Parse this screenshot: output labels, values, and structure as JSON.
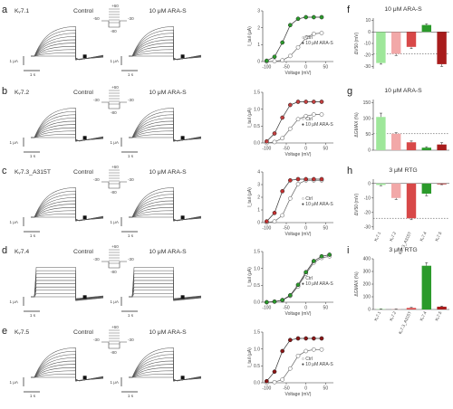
{
  "rows": [
    {
      "panel": "a",
      "channel": "Kᵥ7.1",
      "control_label": "Control",
      "drug_label": "10 μM ARA-S",
      "protocol": {
        "top": "+60",
        "mid": "-50",
        "low": "-80",
        "hold": "-30",
        "hold2": "-100"
      },
      "scale": {
        "y": "1 μA",
        "x": "1 s"
      },
      "curve": {
        "ylabel": "I_tail (μA)",
        "xlabel": "Voltage (mV)",
        "xticks": [
          "-100",
          "-50",
          "0",
          "50"
        ],
        "yticks": [
          "0",
          "1",
          "2",
          "3"
        ],
        "legend": [
          "Ctrl",
          "10 μM ARA-S"
        ]
      }
    },
    {
      "panel": "b",
      "channel": "Kᵥ7.2",
      "control_label": "Control",
      "drug_label": "10 μM ARA-S",
      "protocol": {
        "top": "+60",
        "mid": "-30",
        "low": "-80",
        "hold": "-30",
        "hold2": "-100"
      },
      "scale": {
        "y": "1 μA",
        "x": "1 s"
      },
      "curve": {
        "ylabel": "I_tail (μA)",
        "xlabel": "Voltage (mV)",
        "xticks": [
          "-100",
          "-50",
          "0",
          "50"
        ],
        "yticks": [
          "0.0",
          "0.5",
          "1.0",
          "1.5"
        ],
        "legend": [
          "Ctrl",
          "10 μM ARA-S"
        ]
      }
    },
    {
      "panel": "c",
      "channel": "Kᵥ7.3_A315T",
      "control_label": "Control",
      "drug_label": "10 μM ARA-S",
      "protocol": {
        "top": "+60",
        "mid": "-30",
        "low": "-80",
        "hold": "-30",
        "hold2": "-100"
      },
      "scale": {
        "y": "1 μA",
        "x": "1 s"
      },
      "curve": {
        "ylabel": "I_tail (μA)",
        "xlabel": "Voltage (mV)",
        "xticks": [
          "-100",
          "-50",
          "0",
          "50"
        ],
        "yticks": [
          "0",
          "1",
          "2",
          "3",
          "4"
        ],
        "legend": [
          "Ctrl",
          "10 μM ARA-S"
        ]
      }
    },
    {
      "panel": "d",
      "channel": "Kᵥ7.4",
      "control_label": "Control",
      "drug_label": "10 μM ARA-S",
      "protocol": {
        "top": "+60",
        "mid": "-30",
        "low": "-80",
        "hold": "-30",
        "hold2": "-100"
      },
      "scale": {
        "y": "1 μA",
        "x": "1 s"
      },
      "curve": {
        "ylabel": "I_tail (μA)",
        "xlabel": "Voltage (mV)",
        "xticks": [
          "-100",
          "-50",
          "0",
          "50"
        ],
        "yticks": [
          "0.0",
          "0.5",
          "1.0",
          "1.5"
        ],
        "legend": [
          "Ctrl",
          "10 μM ARA-S"
        ]
      }
    },
    {
      "panel": "e",
      "channel": "Kᵥ7.5",
      "control_label": "Control",
      "drug_label": "10 μM ARA-S",
      "protocol": {
        "top": "+60",
        "mid": "-30",
        "low": "-80",
        "hold": "-30",
        "hold2": "-100"
      },
      "scale": {
        "y": "1 μA",
        "x": "1 s"
      },
      "curve": {
        "ylabel": "I_tail (μA)",
        "xlabel": "Voltage (mV)",
        "xticks": [
          "-100",
          "-50",
          "0",
          "50"
        ],
        "yticks": [
          "0.0",
          "0.5",
          "1.0",
          "1.5"
        ],
        "legend": [
          "Ctrl",
          "10 μM ARA-S"
        ]
      }
    }
  ],
  "bar_panels": [
    {
      "panel": "f",
      "title": "10 μM ARA-S",
      "ylabel": "ΔV50 (mV)",
      "yticks": [
        "10",
        "0",
        "-10",
        "-20",
        "-30"
      ],
      "categories": [
        "Kᵥ7.1",
        "Kᵥ7.2",
        "Kᵥ7.3_A315T",
        "Kᵥ7.4",
        "Kᵥ7.5"
      ]
    },
    {
      "panel": "g",
      "title": "10 μM ARA-S",
      "ylabel": "ΔGMAX (%)",
      "yticks": [
        "150",
        "100",
        "50",
        "0"
      ],
      "categories": [
        "Kᵥ7.1",
        "Kᵥ7.2",
        "Kᵥ7.3_A315T",
        "Kᵥ7.4",
        "Kᵥ7.5"
      ]
    },
    {
      "panel": "h",
      "title": "3 μM RTG",
      "ylabel": "ΔV50 (mV)",
      "yticks": [
        "0",
        "-10",
        "-20",
        "-30"
      ],
      "categories": [
        "Kᵥ7.1",
        "Kᵥ7.2",
        "Kᵥ7.3_A315T",
        "Kᵥ7.4",
        "Kᵥ7.5"
      ]
    },
    {
      "panel": "i",
      "title": "3 μM RTG",
      "ylabel": "ΔGMAX (%)",
      "yticks": [
        "400",
        "300",
        "200",
        "100",
        "0"
      ],
      "categories": [
        "Kᵥ7.1",
        "Kᵥ7.2",
        "Kᵥ7.3_A315T",
        "Kᵥ7.4",
        "Kᵥ7.5"
      ]
    }
  ],
  "chart_data": [
    {
      "type": "bar",
      "panel": "f",
      "title": "10 μM ARA-S",
      "ylabel": "ΔV50 (mV)",
      "ylim": [
        -32,
        12
      ],
      "categories": [
        "Kᵥ7.1",
        "Kᵥ7.2",
        "Kᵥ7.3_A315T",
        "Kᵥ7.4",
        "Kᵥ7.5"
      ],
      "values": [
        -27,
        -19,
        -13,
        6,
        -28
      ],
      "errors": [
        1,
        1.5,
        1.5,
        1,
        2
      ],
      "colors": [
        "#9ee79a",
        "#f2a8a8",
        "#d84848",
        "#2b9a2b",
        "#a81c1c"
      ],
      "reference_line": -19
    },
    {
      "type": "bar",
      "panel": "g",
      "title": "10 μM ARA-S",
      "ylabel": "ΔGMAX (%)",
      "ylim": [
        0,
        160
      ],
      "categories": [
        "Kᵥ7.1",
        "Kᵥ7.2",
        "Kᵥ7.3_A315T",
        "Kᵥ7.4",
        "Kᵥ7.5"
      ],
      "values": [
        105,
        52,
        25,
        8,
        18
      ],
      "errors": [
        12,
        3,
        4,
        3,
        6
      ],
      "colors": [
        "#9ee79a",
        "#f2a8a8",
        "#d84848",
        "#2b9a2b",
        "#a81c1c"
      ],
      "reference_line": 52
    },
    {
      "type": "bar",
      "panel": "h",
      "title": "3 μM RTG",
      "ylabel": "ΔV50 (mV)",
      "ylim": [
        -32,
        3
      ],
      "categories": [
        "Kᵥ7.1",
        "Kᵥ7.2",
        "Kᵥ7.3_A315T",
        "Kᵥ7.4",
        "Kᵥ7.5"
      ],
      "values": [
        -1,
        -10,
        -24,
        -7,
        -0.5
      ],
      "errors": [
        0.5,
        1,
        1,
        1.5,
        0.3
      ],
      "colors": [
        "#9ee79a",
        "#f2a8a8",
        "#d84848",
        "#2b9a2b",
        "#a81c1c"
      ],
      "reference_line": -24
    },
    {
      "type": "bar",
      "panel": "i",
      "title": "3 μM RTG",
      "ylabel": "ΔGMAX (%)",
      "ylim": [
        0,
        400
      ],
      "categories": [
        "Kᵥ7.1",
        "Kᵥ7.2",
        "Kᵥ7.3_A315T",
        "Kᵥ7.4",
        "Kᵥ7.5"
      ],
      "values": [
        3,
        2,
        12,
        345,
        22
      ],
      "errors": [
        2,
        2,
        5,
        25,
        5
      ],
      "colors": [
        "#9ee79a",
        "#f2a8a8",
        "#d84848",
        "#2b9a2b",
        "#a81c1c"
      ]
    },
    {
      "type": "scatter",
      "panel": "a",
      "xlabel": "Voltage (mV)",
      "ylabel": "I_tail (μA)",
      "xlim": [
        -110,
        70
      ],
      "ylim": [
        0,
        3.2
      ],
      "series": [
        {
          "name": "Ctrl",
          "x": [
            -100,
            -80,
            -60,
            -40,
            -20,
            0,
            20,
            40
          ],
          "y": [
            0,
            0.02,
            0.08,
            0.35,
            0.9,
            1.5,
            1.75,
            1.8
          ]
        },
        {
          "name": "10 μM ARA-S",
          "x": [
            -100,
            -80,
            -60,
            -40,
            -20,
            0,
            20,
            40
          ],
          "y": [
            0.05,
            0.3,
            1.2,
            2.3,
            2.7,
            2.8,
            2.8,
            2.8
          ]
        }
      ],
      "color": "#2b9a2b"
    },
    {
      "type": "scatter",
      "panel": "b",
      "xlabel": "Voltage (mV)",
      "ylabel": "I_tail (μA)",
      "xlim": [
        -110,
        70
      ],
      "ylim": [
        0,
        1.6
      ],
      "series": [
        {
          "name": "Ctrl",
          "x": [
            -100,
            -80,
            -60,
            -40,
            -20,
            0,
            20,
            40
          ],
          "y": [
            0,
            0.03,
            0.15,
            0.45,
            0.75,
            0.85,
            0.9,
            0.9
          ]
        },
        {
          "name": "10 μM ARA-S",
          "x": [
            -100,
            -80,
            -60,
            -40,
            -20,
            0,
            20,
            40
          ],
          "y": [
            0.05,
            0.3,
            0.8,
            1.2,
            1.3,
            1.3,
            1.3,
            1.3
          ]
        }
      ],
      "color": "#c24040"
    },
    {
      "type": "scatter",
      "panel": "c",
      "xlabel": "Voltage (mV)",
      "ylabel": "I_tail (μA)",
      "xlim": [
        -110,
        70
      ],
      "ylim": [
        0,
        4.2
      ],
      "series": [
        {
          "name": "Ctrl",
          "x": [
            -100,
            -80,
            -60,
            -40,
            -20,
            0,
            20,
            40
          ],
          "y": [
            0,
            0.1,
            0.6,
            2.0,
            3.2,
            3.5,
            3.5,
            3.5
          ]
        },
        {
          "name": "10 μM ARA-S",
          "x": [
            -100,
            -80,
            -60,
            -40,
            -20,
            0,
            20,
            40
          ],
          "y": [
            0.1,
            0.8,
            2.6,
            3.5,
            3.6,
            3.6,
            3.6,
            3.6
          ]
        }
      ],
      "color": "#c23030"
    },
    {
      "type": "scatter",
      "panel": "d",
      "xlabel": "Voltage (mV)",
      "ylabel": "I_tail (μA)",
      "xlim": [
        -110,
        70
      ],
      "ylim": [
        0,
        1.6
      ],
      "series": [
        {
          "name": "Ctrl",
          "x": [
            -100,
            -80,
            -60,
            -40,
            -20,
            0,
            20,
            40,
            60
          ],
          "y": [
            0,
            0.02,
            0.06,
            0.2,
            0.5,
            0.9,
            1.25,
            1.4,
            1.45
          ]
        },
        {
          "name": "10 μM ARA-S",
          "x": [
            -100,
            -80,
            -60,
            -40,
            -20,
            0,
            20,
            40,
            60
          ],
          "y": [
            0,
            0.02,
            0.07,
            0.22,
            0.55,
            0.95,
            1.3,
            1.45,
            1.5
          ]
        }
      ],
      "color": "#2b9a2b"
    },
    {
      "type": "scatter",
      "panel": "e",
      "xlabel": "Voltage (mV)",
      "ylabel": "I_tail (μA)",
      "xlim": [
        -110,
        70
      ],
      "ylim": [
        0,
        1.6
      ],
      "series": [
        {
          "name": "Ctrl",
          "x": [
            -100,
            -80,
            -60,
            -40,
            -20,
            0,
            20,
            40
          ],
          "y": [
            0,
            0.02,
            0.1,
            0.45,
            0.85,
            1.0,
            1.05,
            1.05
          ]
        },
        {
          "name": "10 μM ARA-S",
          "x": [
            -100,
            -80,
            -60,
            -40,
            -20,
            0,
            20,
            40
          ],
          "y": [
            0.05,
            0.35,
            1.0,
            1.35,
            1.4,
            1.4,
            1.4,
            1.4
          ]
        }
      ],
      "color": "#8a1616"
    }
  ]
}
